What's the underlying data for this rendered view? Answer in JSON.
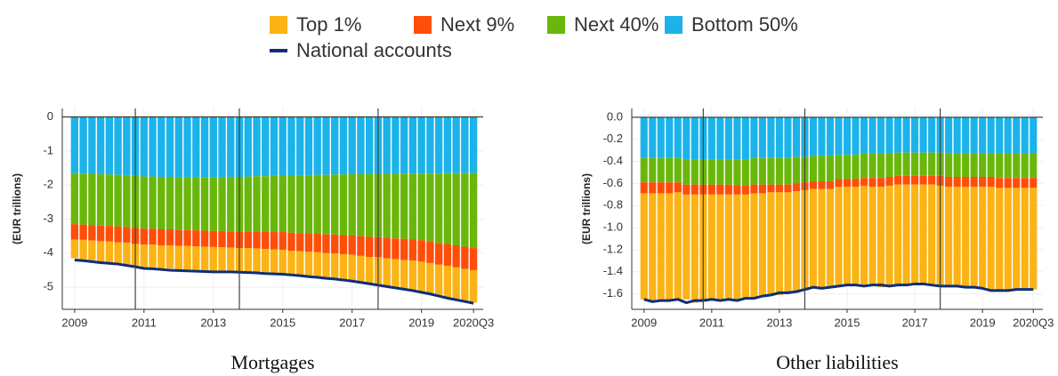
{
  "chart_data": [
    {
      "type": "bar",
      "stacked": true,
      "title": "Mortgages",
      "ylabel": "(EUR trillions)",
      "categories": [
        "2009",
        null,
        null,
        null,
        null,
        null,
        null,
        null,
        "2011",
        null,
        null,
        null,
        null,
        null,
        null,
        null,
        "2013",
        null,
        null,
        null,
        null,
        null,
        null,
        null,
        "2015",
        null,
        null,
        null,
        null,
        null,
        null,
        null,
        "2017",
        null,
        null,
        null,
        null,
        null,
        null,
        null,
        "2019",
        null,
        null,
        null,
        null,
        null,
        "2020Q3"
      ],
      "series": [
        {
          "name": "Bottom 50%",
          "color": "#1bb3ea",
          "values": [
            -1.65,
            -1.66,
            -1.67,
            -1.68,
            -1.69,
            -1.7,
            -1.71,
            -1.73,
            -1.75,
            -1.75,
            -1.76,
            -1.76,
            -1.77,
            -1.77,
            -1.77,
            -1.78,
            -1.78,
            -1.77,
            -1.77,
            -1.76,
            -1.75,
            -1.74,
            -1.74,
            -1.73,
            -1.72,
            -1.72,
            -1.71,
            -1.71,
            -1.7,
            -1.7,
            -1.69,
            -1.69,
            -1.68,
            -1.68,
            -1.68,
            -1.67,
            -1.67,
            -1.67,
            -1.66,
            -1.66,
            -1.66,
            -1.66,
            -1.66,
            -1.65,
            -1.65,
            -1.65,
            -1.65
          ]
        },
        {
          "name": "Next 40%",
          "color": "#6ab70c",
          "values": [
            -1.5,
            -1.5,
            -1.51,
            -1.51,
            -1.51,
            -1.52,
            -1.52,
            -1.53,
            -1.53,
            -1.53,
            -1.54,
            -1.54,
            -1.55,
            -1.55,
            -1.56,
            -1.56,
            -1.57,
            -1.58,
            -1.59,
            -1.6,
            -1.61,
            -1.62,
            -1.63,
            -1.65,
            -1.66,
            -1.68,
            -1.7,
            -1.71,
            -1.73,
            -1.75,
            -1.76,
            -1.78,
            -1.8,
            -1.82,
            -1.84,
            -1.86,
            -1.88,
            -1.9,
            -1.92,
            -1.94,
            -1.96,
            -2.0,
            -2.04,
            -2.08,
            -2.12,
            -2.16,
            -2.2
          ]
        },
        {
          "name": "Next 9%",
          "color": "#ff4d0a",
          "values": [
            -0.45,
            -0.45,
            -0.45,
            -0.46,
            -0.46,
            -0.46,
            -0.46,
            -0.47,
            -0.47,
            -0.47,
            -0.47,
            -0.47,
            -0.47,
            -0.47,
            -0.47,
            -0.47,
            -0.47,
            -0.48,
            -0.48,
            -0.49,
            -0.49,
            -0.5,
            -0.51,
            -0.51,
            -0.52,
            -0.53,
            -0.53,
            -0.54,
            -0.54,
            -0.55,
            -0.56,
            -0.56,
            -0.57,
            -0.58,
            -0.59,
            -0.59,
            -0.6,
            -0.61,
            -0.62,
            -0.62,
            -0.63,
            -0.63,
            -0.64,
            -0.64,
            -0.64,
            -0.65,
            -0.65
          ]
        },
        {
          "name": "Top 1%",
          "color": "#fbb315",
          "values": [
            -0.55,
            -0.57,
            -0.58,
            -0.6,
            -0.61,
            -0.63,
            -0.64,
            -0.66,
            -0.67,
            -0.67,
            -0.68,
            -0.68,
            -0.69,
            -0.69,
            -0.69,
            -0.7,
            -0.7,
            -0.7,
            -0.7,
            -0.71,
            -0.71,
            -0.71,
            -0.71,
            -0.72,
            -0.72,
            -0.73,
            -0.74,
            -0.75,
            -0.76,
            -0.77,
            -0.78,
            -0.79,
            -0.8,
            -0.81,
            -0.82,
            -0.84,
            -0.85,
            -0.86,
            -0.87,
            -0.89,
            -0.9,
            -0.91,
            -0.92,
            -0.93,
            -0.93,
            -0.94,
            -0.95
          ]
        },
        {
          "name": "National accounts",
          "type": "line",
          "color": "#0d2e7a",
          "values": [
            -4.2,
            -4.22,
            -4.25,
            -4.28,
            -4.3,
            -4.32,
            -4.36,
            -4.4,
            -4.45,
            -4.46,
            -4.48,
            -4.5,
            -4.51,
            -4.52,
            -4.53,
            -4.54,
            -4.55,
            -4.55,
            -4.55,
            -4.56,
            -4.57,
            -4.58,
            -4.6,
            -4.61,
            -4.62,
            -4.64,
            -4.66,
            -4.69,
            -4.71,
            -4.74,
            -4.76,
            -4.79,
            -4.82,
            -4.86,
            -4.9,
            -4.94,
            -4.98,
            -5.02,
            -5.06,
            -5.1,
            -5.15,
            -5.2,
            -5.26,
            -5.32,
            -5.37,
            -5.42,
            -5.47
          ]
        }
      ],
      "ylim": [
        -5.65,
        0.25
      ],
      "yticks": [
        0,
        -1,
        -2,
        -3,
        -4,
        -5
      ],
      "grid": true,
      "vlines": [
        7,
        19,
        35
      ]
    },
    {
      "type": "bar",
      "stacked": true,
      "title": "Other liabilities",
      "ylabel": "(EUR trillions)",
      "categories": [
        "2009",
        null,
        null,
        null,
        null,
        null,
        null,
        null,
        "2011",
        null,
        null,
        null,
        null,
        null,
        null,
        null,
        "2013",
        null,
        null,
        null,
        null,
        null,
        null,
        null,
        "2015",
        null,
        null,
        null,
        null,
        null,
        null,
        null,
        "2017",
        null,
        null,
        null,
        null,
        null,
        null,
        null,
        "2019",
        null,
        null,
        null,
        null,
        null,
        "2020Q3"
      ],
      "series": [
        {
          "name": "Bottom 50%",
          "color": "#1bb3ea",
          "values": [
            -0.37,
            -0.37,
            -0.37,
            -0.37,
            -0.37,
            -0.38,
            -0.38,
            -0.38,
            -0.38,
            -0.38,
            -0.38,
            -0.38,
            -0.38,
            -0.37,
            -0.37,
            -0.37,
            -0.37,
            -0.37,
            -0.36,
            -0.36,
            -0.35,
            -0.35,
            -0.35,
            -0.34,
            -0.34,
            -0.34,
            -0.33,
            -0.33,
            -0.33,
            -0.33,
            -0.32,
            -0.32,
            -0.32,
            -0.32,
            -0.32,
            -0.32,
            -0.33,
            -0.33,
            -0.33,
            -0.33,
            -0.33,
            -0.33,
            -0.33,
            -0.33,
            -0.33,
            -0.33,
            -0.33
          ]
        },
        {
          "name": "Next 40%",
          "color": "#6ab70c",
          "values": [
            -0.22,
            -0.22,
            -0.22,
            -0.22,
            -0.22,
            -0.23,
            -0.23,
            -0.23,
            -0.23,
            -0.23,
            -0.23,
            -0.24,
            -0.24,
            -0.24,
            -0.24,
            -0.24,
            -0.24,
            -0.24,
            -0.24,
            -0.23,
            -0.23,
            -0.23,
            -0.23,
            -0.22,
            -0.22,
            -0.22,
            -0.22,
            -0.22,
            -0.22,
            -0.21,
            -0.21,
            -0.21,
            -0.21,
            -0.21,
            -0.21,
            -0.21,
            -0.21,
            -0.21,
            -0.21,
            -0.21,
            -0.21,
            -0.21,
            -0.22,
            -0.22,
            -0.22,
            -0.22,
            -0.22
          ]
        },
        {
          "name": "Next 9%",
          "color": "#ff4d0a",
          "values": [
            -0.1,
            -0.1,
            -0.1,
            -0.1,
            -0.09,
            -0.09,
            -0.09,
            -0.09,
            -0.09,
            -0.09,
            -0.09,
            -0.08,
            -0.08,
            -0.08,
            -0.08,
            -0.07,
            -0.07,
            -0.07,
            -0.07,
            -0.07,
            -0.07,
            -0.07,
            -0.07,
            -0.07,
            -0.07,
            -0.07,
            -0.07,
            -0.08,
            -0.08,
            -0.08,
            -0.08,
            -0.08,
            -0.08,
            -0.08,
            -0.08,
            -0.09,
            -0.09,
            -0.09,
            -0.09,
            -0.09,
            -0.09,
            -0.09,
            -0.09,
            -0.09,
            -0.09,
            -0.09,
            -0.09
          ]
        },
        {
          "name": "Top 1%",
          "color": "#fbb315",
          "values": [
            -0.96,
            -0.97,
            -0.96,
            -0.96,
            -0.97,
            -0.95,
            -0.98,
            -0.96,
            -0.95,
            -0.95,
            -0.94,
            -0.95,
            -0.94,
            -0.95,
            -0.94,
            -0.93,
            -0.93,
            -0.92,
            -0.92,
            -0.91,
            -0.9,
            -0.9,
            -0.9,
            -0.91,
            -0.9,
            -0.9,
            -0.91,
            -0.9,
            -0.91,
            -0.9,
            -0.91,
            -0.91,
            -0.91,
            -0.9,
            -0.9,
            -0.9,
            -0.91,
            -0.9,
            -0.91,
            -0.91,
            -0.91,
            -0.93,
            -0.93,
            -0.93,
            -0.92,
            -0.92,
            -0.92
          ]
        },
        {
          "name": "National accounts",
          "type": "line",
          "color": "#0d2e7a",
          "values": [
            -1.65,
            -1.67,
            -1.66,
            -1.66,
            -1.65,
            -1.68,
            -1.66,
            -1.66,
            -1.65,
            -1.66,
            -1.65,
            -1.66,
            -1.64,
            -1.64,
            -1.62,
            -1.61,
            -1.59,
            -1.59,
            -1.58,
            -1.56,
            -1.54,
            -1.55,
            -1.54,
            -1.53,
            -1.52,
            -1.52,
            -1.53,
            -1.52,
            -1.52,
            -1.53,
            -1.52,
            -1.52,
            -1.51,
            -1.51,
            -1.52,
            -1.53,
            -1.53,
            -1.53,
            -1.54,
            -1.54,
            -1.55,
            -1.57,
            -1.57,
            -1.57,
            -1.56,
            -1.56,
            -1.56
          ]
        }
      ],
      "ylim": [
        -1.74,
        0.08
      ],
      "yticks": [
        {
          "value": 0,
          "label": "0.0"
        },
        -0.2,
        -0.4,
        -0.6,
        -0.8,
        {
          "value": -1,
          "label": "-1.0"
        },
        -1.2,
        -1.4,
        -1.6
      ],
      "grid": true,
      "vlines": [
        7,
        19,
        35
      ]
    }
  ]
}
